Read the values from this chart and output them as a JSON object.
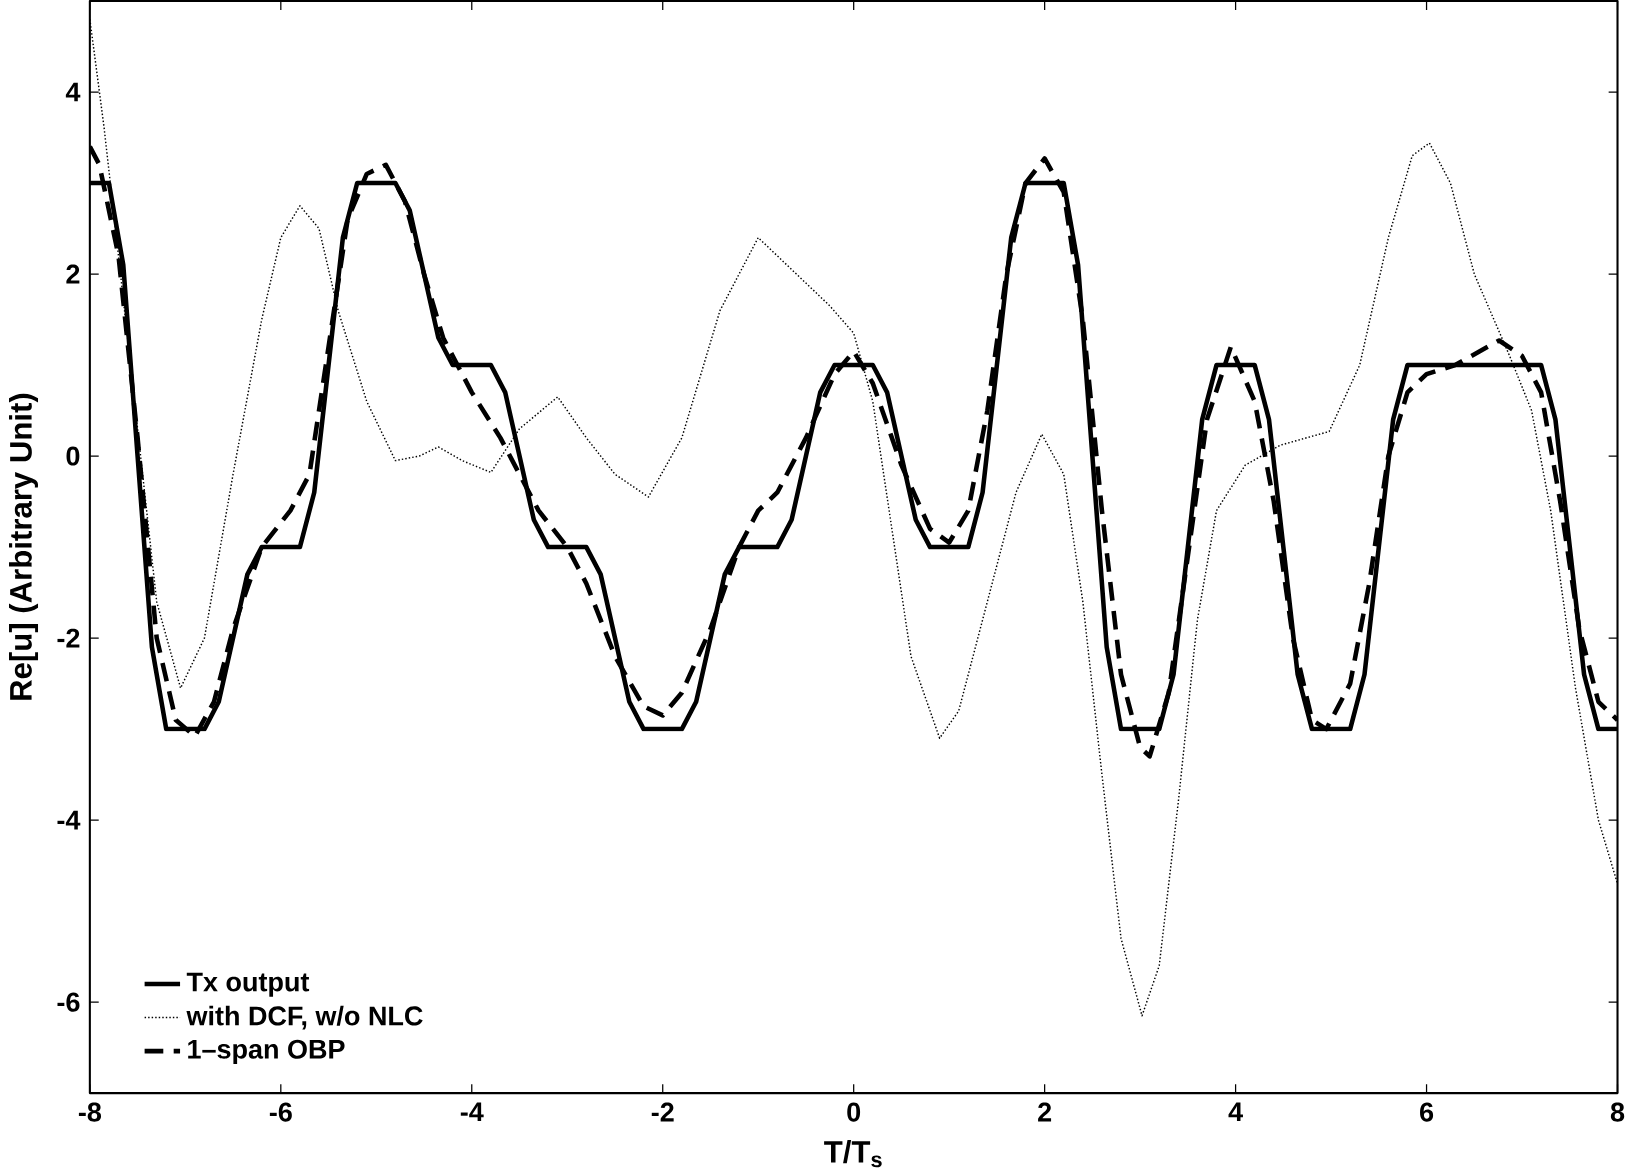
{
  "chart_data": {
    "type": "line",
    "xlabel": "T/T$_{s}$",
    "ylabel": "Re[u] (Arbitrary Unit)",
    "xlim": [
      -8,
      8
    ],
    "ylim": [
      -7,
      5
    ],
    "xticks": [
      -8,
      -6,
      -4,
      -2,
      0,
      2,
      4,
      6,
      8
    ],
    "yticks": [
      -6,
      -4,
      -2,
      0,
      2,
      4
    ],
    "grid": false,
    "legend": "bottom left",
    "marker": "none",
    "series": [
      {
        "name": "Tx output",
        "color": "#000000",
        "line_style": "solid",
        "x": [
          -8,
          -7.8,
          -7.65,
          -7.5,
          -7.35,
          -7.2,
          -6.8,
          -6.65,
          -6.5,
          -6.35,
          -6.2,
          -5.8,
          -5.65,
          -5.5,
          -5.35,
          -5.2,
          -4.8,
          -4.65,
          -4.5,
          -4.35,
          -4.2,
          -3.8,
          -3.65,
          -3.5,
          -3.35,
          -3.2,
          -2.8,
          -2.65,
          -2.5,
          -2.35,
          -2.2,
          -1.8,
          -1.65,
          -1.5,
          -1.35,
          -1.2,
          -0.8,
          -0.65,
          -0.5,
          -0.35,
          -0.2,
          0.2,
          0.35,
          0.5,
          0.65,
          0.8,
          1.2,
          1.35,
          1.5,
          1.65,
          1.8,
          2.2,
          2.35,
          2.5,
          2.65,
          2.8,
          3.2,
          3.35,
          3.5,
          3.65,
          3.8,
          4.2,
          4.35,
          4.5,
          4.65,
          4.8,
          5.2,
          5.35,
          5.5,
          5.65,
          5.8,
          7.2,
          7.35,
          7.5,
          7.65,
          7.8,
          8
        ],
        "values": [
          3,
          3,
          2.1,
          0,
          -2.1,
          -3,
          -3,
          -2.7,
          -2,
          -1.3,
          -1,
          -1,
          -0.4,
          1,
          2.4,
          3,
          3,
          2.7,
          2,
          1.3,
          1,
          1,
          0.7,
          0,
          -0.7,
          -1,
          -1,
          -1.3,
          -2,
          -2.7,
          -3,
          -3,
          -2.7,
          -2,
          -1.3,
          -1,
          -1,
          -0.7,
          0,
          0.7,
          1,
          1,
          0.7,
          0,
          -0.7,
          -1,
          -1,
          -0.4,
          1,
          2.4,
          3,
          3,
          2.1,
          0,
          -2.1,
          -3,
          -3,
          -2.4,
          -1,
          0.4,
          1,
          1,
          0.4,
          -1,
          -2.4,
          -3,
          -3,
          -2.4,
          -1,
          0.4,
          1,
          1,
          0.4,
          -1,
          -2.4,
          -3,
          -3
        ]
      },
      {
        "name": "with DCF, w/o NLC",
        "color": "#000000",
        "line_style": "dotted",
        "x": [
          -8,
          -7.85,
          -7.7,
          -7.5,
          -7.3,
          -7.05,
          -6.8,
          -6.5,
          -6.2,
          -6.0,
          -5.8,
          -5.6,
          -5.4,
          -5.1,
          -4.8,
          -4.55,
          -4.35,
          -4.1,
          -3.8,
          -3.5,
          -3.1,
          -2.8,
          -2.5,
          -2.15,
          -1.8,
          -1.4,
          -1.0,
          -0.6,
          -0.25,
          0.0,
          0.2,
          0.4,
          0.6,
          0.9,
          1.1,
          1.4,
          1.7,
          1.97,
          2.2,
          2.4,
          2.6,
          2.8,
          3.02,
          3.2,
          3.4,
          3.6,
          3.8,
          4.1,
          4.47,
          4.98,
          5.3,
          5.6,
          5.85,
          6.03,
          6.25,
          6.5,
          6.87,
          7.1,
          7.3,
          7.56,
          7.8,
          8.0
        ],
        "values": [
          4.8,
          3.6,
          2.2,
          0.3,
          -1.6,
          -2.55,
          -2.0,
          -0.2,
          1.5,
          2.4,
          2.75,
          2.5,
          1.6,
          0.6,
          -0.05,
          0.0,
          0.1,
          -0.05,
          -0.18,
          0.3,
          0.65,
          0.2,
          -0.2,
          -0.45,
          0.2,
          1.6,
          2.4,
          2.0,
          1.65,
          1.35,
          0.6,
          -0.8,
          -2.2,
          -3.1,
          -2.8,
          -1.6,
          -0.4,
          0.24,
          -0.2,
          -1.6,
          -3.5,
          -5.3,
          -6.15,
          -5.6,
          -3.8,
          -1.8,
          -0.6,
          -0.1,
          0.12,
          0.27,
          1.0,
          2.4,
          3.3,
          3.44,
          3.0,
          2.0,
          1.1,
          0.5,
          -0.6,
          -2.55,
          -4.0,
          -4.7
        ]
      },
      {
        "name": "1–span OBP",
        "color": "#000000",
        "line_style": "dashed",
        "x": [
          -8,
          -7.9,
          -7.7,
          -7.5,
          -7.3,
          -7.1,
          -6.9,
          -6.7,
          -6.5,
          -6.2,
          -5.9,
          -5.7,
          -5.5,
          -5.3,
          -5.1,
          -4.9,
          -4.7,
          -4.5,
          -4.3,
          -4.0,
          -3.7,
          -3.5,
          -3.3,
          -3.0,
          -2.8,
          -2.5,
          -2.2,
          -2.0,
          -1.8,
          -1.5,
          -1.2,
          -1.0,
          -0.8,
          -0.5,
          -0.2,
          0.0,
          0.2,
          0.5,
          0.8,
          1.0,
          1.2,
          1.4,
          1.6,
          1.8,
          2.0,
          2.2,
          2.4,
          2.6,
          2.8,
          3.0,
          3.1,
          3.3,
          3.5,
          3.7,
          3.95,
          4.2,
          4.4,
          4.6,
          4.8,
          4.95,
          5.2,
          5.4,
          5.6,
          5.8,
          6.0,
          6.3,
          6.76,
          7.0,
          7.2,
          7.4,
          7.6,
          7.8,
          8.0
        ],
        "values": [
          3.4,
          3.2,
          2.2,
          0.2,
          -2,
          -2.9,
          -3.08,
          -2.7,
          -1.9,
          -1.0,
          -0.6,
          -0.2,
          1.2,
          2.6,
          3.1,
          3.2,
          2.8,
          2.0,
          1.3,
          0.7,
          0.2,
          -0.2,
          -0.6,
          -1.0,
          -1.4,
          -2.2,
          -2.75,
          -2.85,
          -2.6,
          -1.9,
          -1.0,
          -0.6,
          -0.4,
          0.2,
          0.9,
          1.15,
          0.8,
          -0.1,
          -0.8,
          -0.95,
          -0.6,
          0.5,
          2.0,
          3.0,
          3.27,
          2.9,
          1.5,
          -0.6,
          -2.4,
          -3.2,
          -3.3,
          -2.6,
          -1.1,
          0.4,
          1.2,
          0.6,
          -0.5,
          -2.0,
          -2.9,
          -3.0,
          -2.5,
          -1.4,
          0.0,
          0.7,
          0.9,
          1.0,
          1.27,
          1.1,
          0.7,
          -0.5,
          -1.9,
          -2.7,
          -2.9
        ]
      }
    ]
  }
}
